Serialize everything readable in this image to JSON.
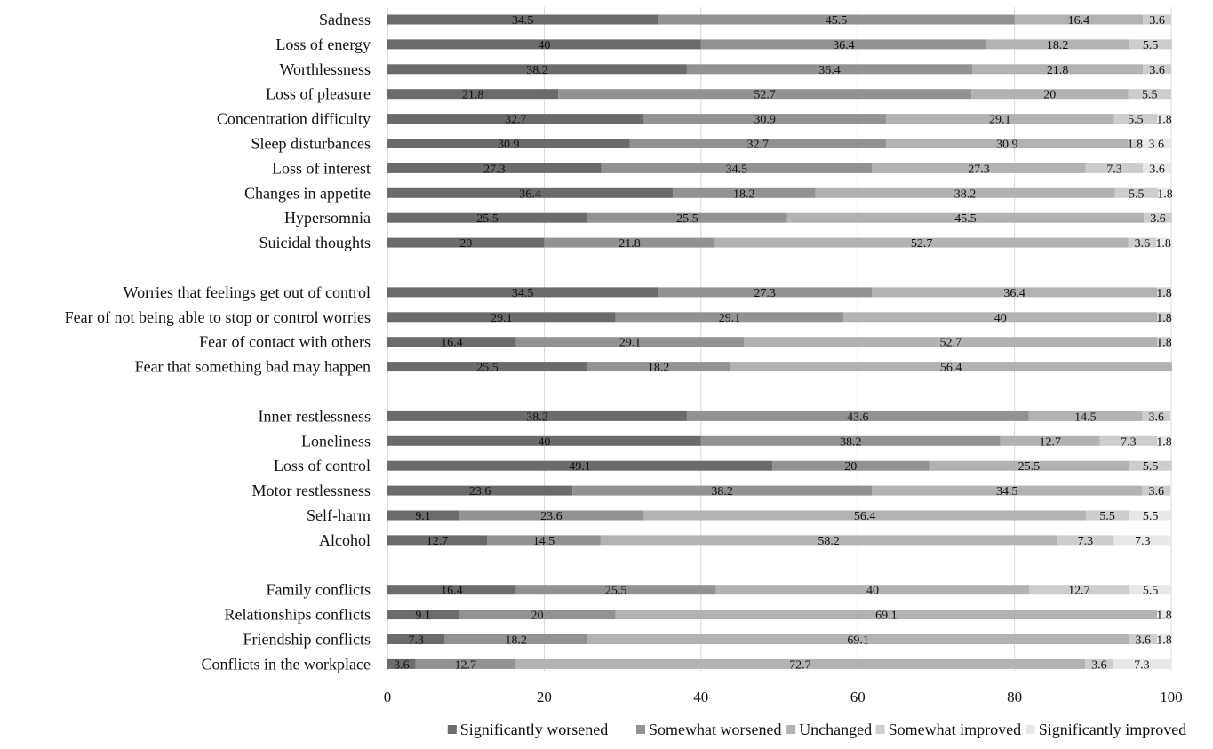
{
  "chart_data": {
    "type": "bar",
    "orientation": "horizontal",
    "stacked": true,
    "title": "",
    "xlabel": "",
    "ylabel": "",
    "xlim": [
      0,
      100
    ],
    "x_ticks": [
      0,
      20,
      40,
      60,
      80,
      100
    ],
    "grid": true,
    "legend_position": "bottom-right",
    "series": [
      {
        "name": "Significantly worsened",
        "color": "#6b6b6b"
      },
      {
        "name": "Somewhat worsened",
        "color": "#929292"
      },
      {
        "name": "Unchanged",
        "color": "#b2b2b2"
      },
      {
        "name": "Somewhat improved",
        "color": "#cdcdcd"
      },
      {
        "name": "Significantly improved",
        "color": "#e8e8e8"
      }
    ],
    "groups": [
      {
        "categories": [
          {
            "label": "Sadness",
            "values": [
              34.5,
              45.5,
              16.4,
              3.6,
              0
            ],
            "labels": [
              "34.5",
              "45.5",
              "16.4",
              "3.6",
              ""
            ]
          },
          {
            "label": "Loss of energy",
            "values": [
              40,
              36.4,
              18.2,
              5.5,
              0
            ],
            "labels": [
              "40",
              "36.4",
              "18.2",
              "5.5",
              ""
            ]
          },
          {
            "label": "Worthlessness",
            "values": [
              38.2,
              36.4,
              21.8,
              3.6,
              0
            ],
            "labels": [
              "38.2",
              "36.4",
              "21.8",
              "3.6",
              ""
            ]
          },
          {
            "label": "Loss of pleasure",
            "values": [
              21.8,
              52.7,
              20,
              5.5,
              0
            ],
            "labels": [
              "21.8",
              "52.7",
              "20",
              "5.5",
              ""
            ]
          },
          {
            "label": "Concentration difficulty",
            "values": [
              32.7,
              30.9,
              29.1,
              5.5,
              1.8
            ],
            "labels": [
              "32.7",
              "30.9",
              "29.1",
              "5.5",
              "1.8"
            ]
          },
          {
            "label": "Sleep disturbances",
            "values": [
              30.9,
              32.7,
              30.9,
              1.8,
              3.6
            ],
            "labels": [
              "30.9",
              "32.7",
              "30.9",
              "1.8",
              "3.6"
            ]
          },
          {
            "label": "Loss of interest",
            "values": [
              27.3,
              34.5,
              27.3,
              7.3,
              3.6
            ],
            "labels": [
              "27.3",
              "34.5",
              "27.3",
              "7.3",
              "3.6"
            ]
          },
          {
            "label": "Changes in appetite",
            "values": [
              36.4,
              18.2,
              38.2,
              5.5,
              1.8
            ],
            "labels": [
              "36.4",
              "18.2",
              "38.2",
              "5.5",
              "1.8"
            ]
          },
          {
            "label": "Hypersomnia",
            "values": [
              25.5,
              25.5,
              45.5,
              3.6,
              0
            ],
            "labels": [
              "25.5",
              "25.5",
              "45.5",
              "3.6",
              ""
            ]
          },
          {
            "label": "Suicidal thoughts",
            "values": [
              20,
              21.8,
              52.7,
              3.6,
              1.8
            ],
            "labels": [
              "20",
              "21.8",
              "52.7",
              "3.6",
              "1.8"
            ]
          }
        ]
      },
      {
        "categories": [
          {
            "label": "Worries that feelings get out of control",
            "values": [
              34.5,
              27.3,
              36.4,
              1.8,
              0
            ],
            "labels": [
              "34.5",
              "27.3",
              "36.4",
              "1.8",
              ""
            ]
          },
          {
            "label": "Fear of not being able to stop or control worries",
            "values": [
              29.1,
              29.1,
              40,
              1.8,
              0
            ],
            "labels": [
              "29.1",
              "29.1",
              "40",
              "1.8",
              ""
            ]
          },
          {
            "label": "Fear of contact with others",
            "values": [
              16.4,
              29.1,
              52.7,
              1.8,
              0
            ],
            "labels": [
              "16.4",
              "29.1",
              "52.7",
              "1.8",
              ""
            ]
          },
          {
            "label": "Fear that something bad may happen",
            "values": [
              25.5,
              18.2,
              56.4,
              0,
              0
            ],
            "labels": [
              "25.5",
              "18.2",
              "56.4",
              "",
              ""
            ]
          }
        ]
      },
      {
        "categories": [
          {
            "label": "Inner restlessness",
            "values": [
              38.2,
              43.6,
              14.5,
              3.6,
              0
            ],
            "labels": [
              "38.2",
              "43.6",
              "14.5",
              "3.6",
              ""
            ]
          },
          {
            "label": "Loneliness",
            "values": [
              40,
              38.2,
              12.7,
              7.3,
              1.8
            ],
            "labels": [
              "40",
              "38.2",
              "12.7",
              "7.3",
              "1.8"
            ]
          },
          {
            "label": "Loss of control",
            "values": [
              49.1,
              20,
              25.5,
              5.5,
              0
            ],
            "labels": [
              "49.1",
              "20",
              "25.5",
              "5.5",
              ""
            ]
          },
          {
            "label": "Motor restlessness",
            "values": [
              23.6,
              38.2,
              34.5,
              3.6,
              0
            ],
            "labels": [
              "23.6",
              "38.2",
              "34.5",
              "3.6",
              ""
            ]
          },
          {
            "label": "Self-harm",
            "values": [
              9.1,
              23.6,
              56.4,
              5.5,
              5.5
            ],
            "labels": [
              "9.1",
              "23.6",
              "56.4",
              "5.5",
              "5.5"
            ]
          },
          {
            "label": "Alcohol",
            "values": [
              12.7,
              14.5,
              58.2,
              7.3,
              7.3
            ],
            "labels": [
              "12.7",
              "14.5",
              "58.2",
              "7.3",
              "7.3"
            ]
          }
        ]
      },
      {
        "categories": [
          {
            "label": "Family conflicts",
            "values": [
              16.4,
              25.5,
              40,
              12.7,
              5.5
            ],
            "labels": [
              "16.4",
              "25.5",
              "40",
              "12.7",
              "5.5"
            ]
          },
          {
            "label": "Relationships conflicts",
            "values": [
              9.1,
              20,
              69.1,
              0,
              1.8
            ],
            "labels": [
              "9.1",
              "20",
              "69.1",
              "",
              "1.8"
            ]
          },
          {
            "label": "Friendship conflicts",
            "values": [
              7.3,
              18.2,
              69.1,
              3.6,
              1.8
            ],
            "labels": [
              "7.3",
              "18.2",
              "69.1",
              "3.6",
              "1.8"
            ]
          },
          {
            "label": "Conflicts in the workplace",
            "values": [
              3.6,
              12.7,
              72.7,
              3.6,
              7.3
            ],
            "labels": [
              "3.6",
              "12.7",
              "72.7",
              "3.6",
              "7.3"
            ]
          }
        ]
      }
    ]
  }
}
